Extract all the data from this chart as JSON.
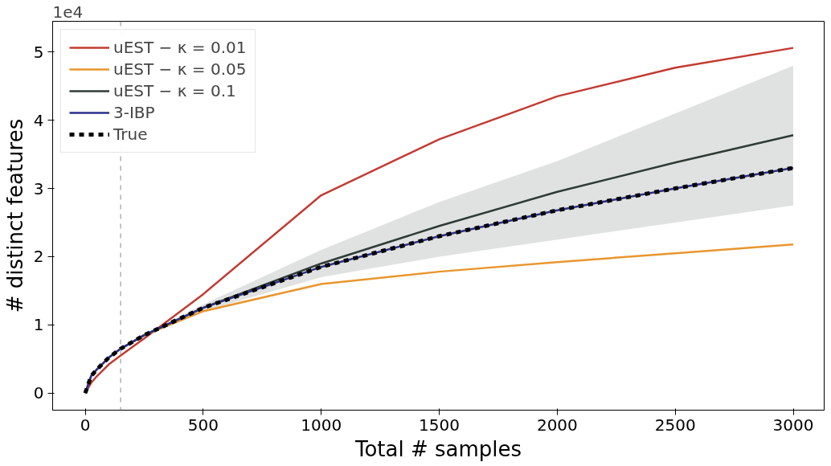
{
  "chart_data": {
    "type": "line",
    "xlabel": "Total # samples",
    "ylabel": "# distinct features",
    "annotations": [
      "1e4"
    ],
    "xlim": [
      -138,
      3131
    ],
    "ylim": [
      -0.25,
      5.45
    ],
    "xticks": [
      0,
      500,
      1000,
      1500,
      2000,
      2500,
      3000
    ],
    "yticks": [
      0,
      1,
      2,
      3,
      4,
      5
    ],
    "grid": false,
    "legend": "top left",
    "line_style": "solid",
    "marker": "none",
    "x": [
      0,
      25,
      50,
      100,
      150,
      250,
      500,
      1000,
      1500,
      2000,
      2500,
      3000
    ],
    "ref_lines": [
      {
        "axis": "x",
        "value": 150,
        "label": null,
        "color": "#888888",
        "line_style": "dashed"
      }
    ],
    "series": [
      {
        "name": "uEST − κ = 0.01",
        "color": "#c23b32",
        "values": [
          0,
          0.15,
          0.25,
          0.42,
          0.55,
          0.8,
          1.45,
          2.9,
          3.72,
          4.35,
          4.77,
          5.06
        ]
      },
      {
        "name": "uEST − κ = 0.05",
        "color": "#e8962e",
        "values": [
          null,
          null,
          null,
          null,
          0.65,
          0.85,
          1.2,
          1.6,
          1.78,
          1.92,
          2.05,
          2.18
        ]
      },
      {
        "name": "uEST − κ = 0.1",
        "color": "#2f3b35",
        "values": [
          0,
          0.25,
          0.35,
          0.52,
          0.65,
          0.85,
          1.25,
          1.9,
          2.45,
          2.95,
          3.38,
          3.78
        ],
        "lower": [
          0,
          0.25,
          0.35,
          0.52,
          0.65,
          0.83,
          1.2,
          1.7,
          2.0,
          2.25,
          2.5,
          2.75
        ],
        "upper": [
          0,
          0.25,
          0.35,
          0.52,
          0.65,
          0.87,
          1.3,
          2.1,
          2.8,
          3.4,
          4.1,
          4.8
        ]
      },
      {
        "name": "3-IBP",
        "color": "#2b2f8a",
        "values": [
          0,
          0.25,
          0.35,
          0.52,
          0.65,
          0.85,
          1.25,
          1.85,
          2.3,
          2.68,
          3.0,
          3.3
        ]
      },
      {
        "name": "True",
        "color": "#000000",
        "line_style": "dashed",
        "values": [
          0,
          0.25,
          0.35,
          0.52,
          0.65,
          0.85,
          1.25,
          1.85,
          2.3,
          2.68,
          3.0,
          3.3
        ]
      }
    ]
  }
}
